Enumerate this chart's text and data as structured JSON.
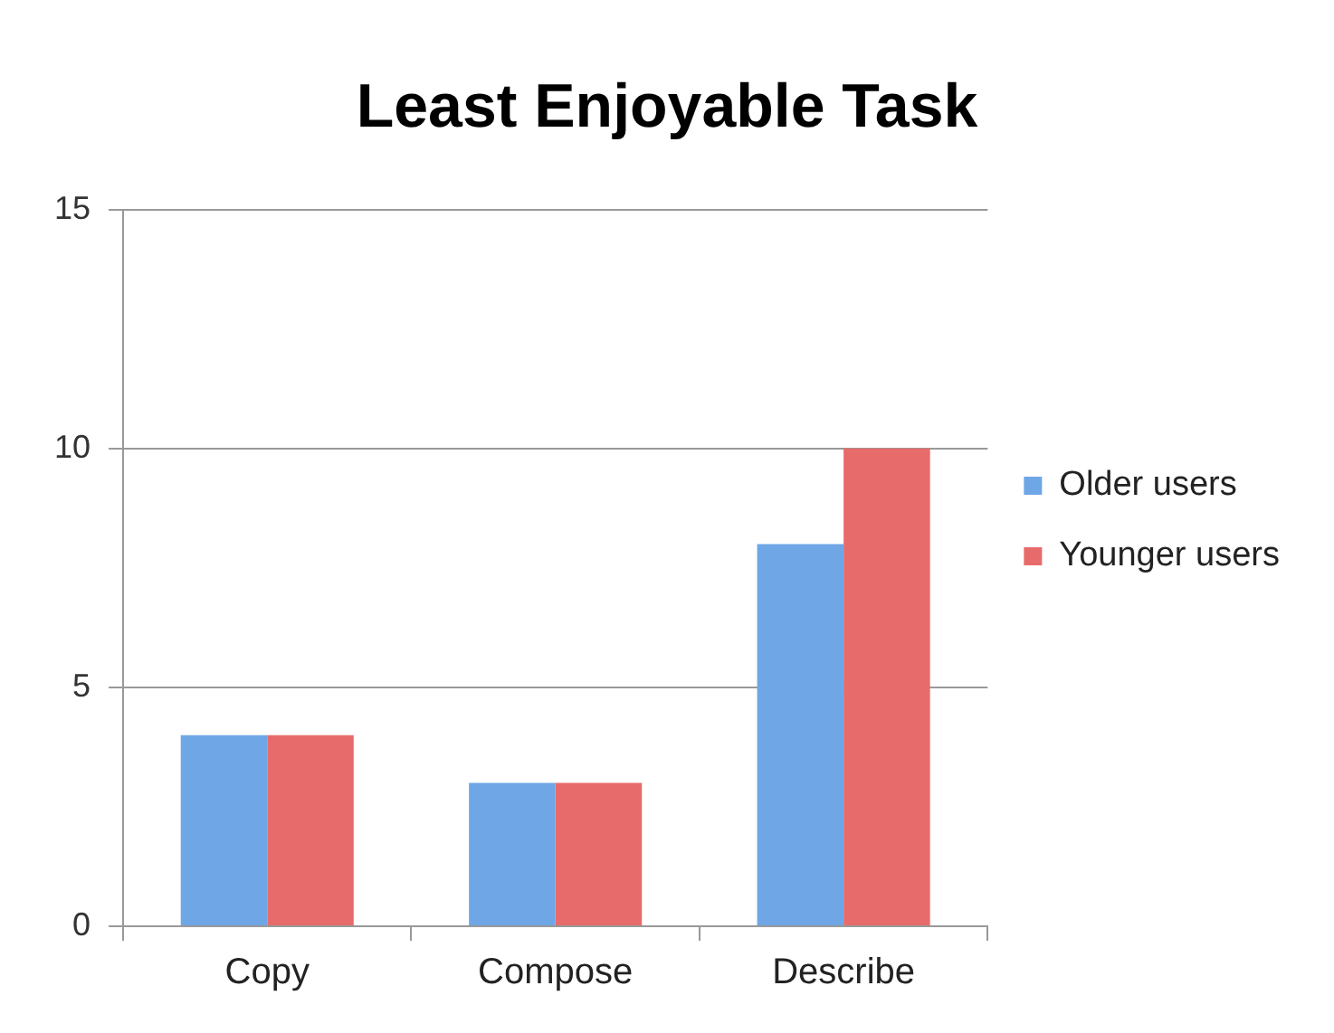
{
  "chart_data": {
    "type": "bar",
    "title": "Least Enjoyable Task",
    "categories": [
      "Copy",
      "Compose",
      "Describe"
    ],
    "series": [
      {
        "name": "Older users",
        "color": "#6fa6e6",
        "values": [
          4,
          3,
          8
        ]
      },
      {
        "name": "Younger users",
        "color": "#e86b6b",
        "values": [
          4,
          3,
          10
        ]
      }
    ],
    "ylim": [
      0,
      15
    ],
    "yticks": [
      0,
      5,
      10,
      15
    ],
    "grid": "y",
    "legend": "right"
  }
}
